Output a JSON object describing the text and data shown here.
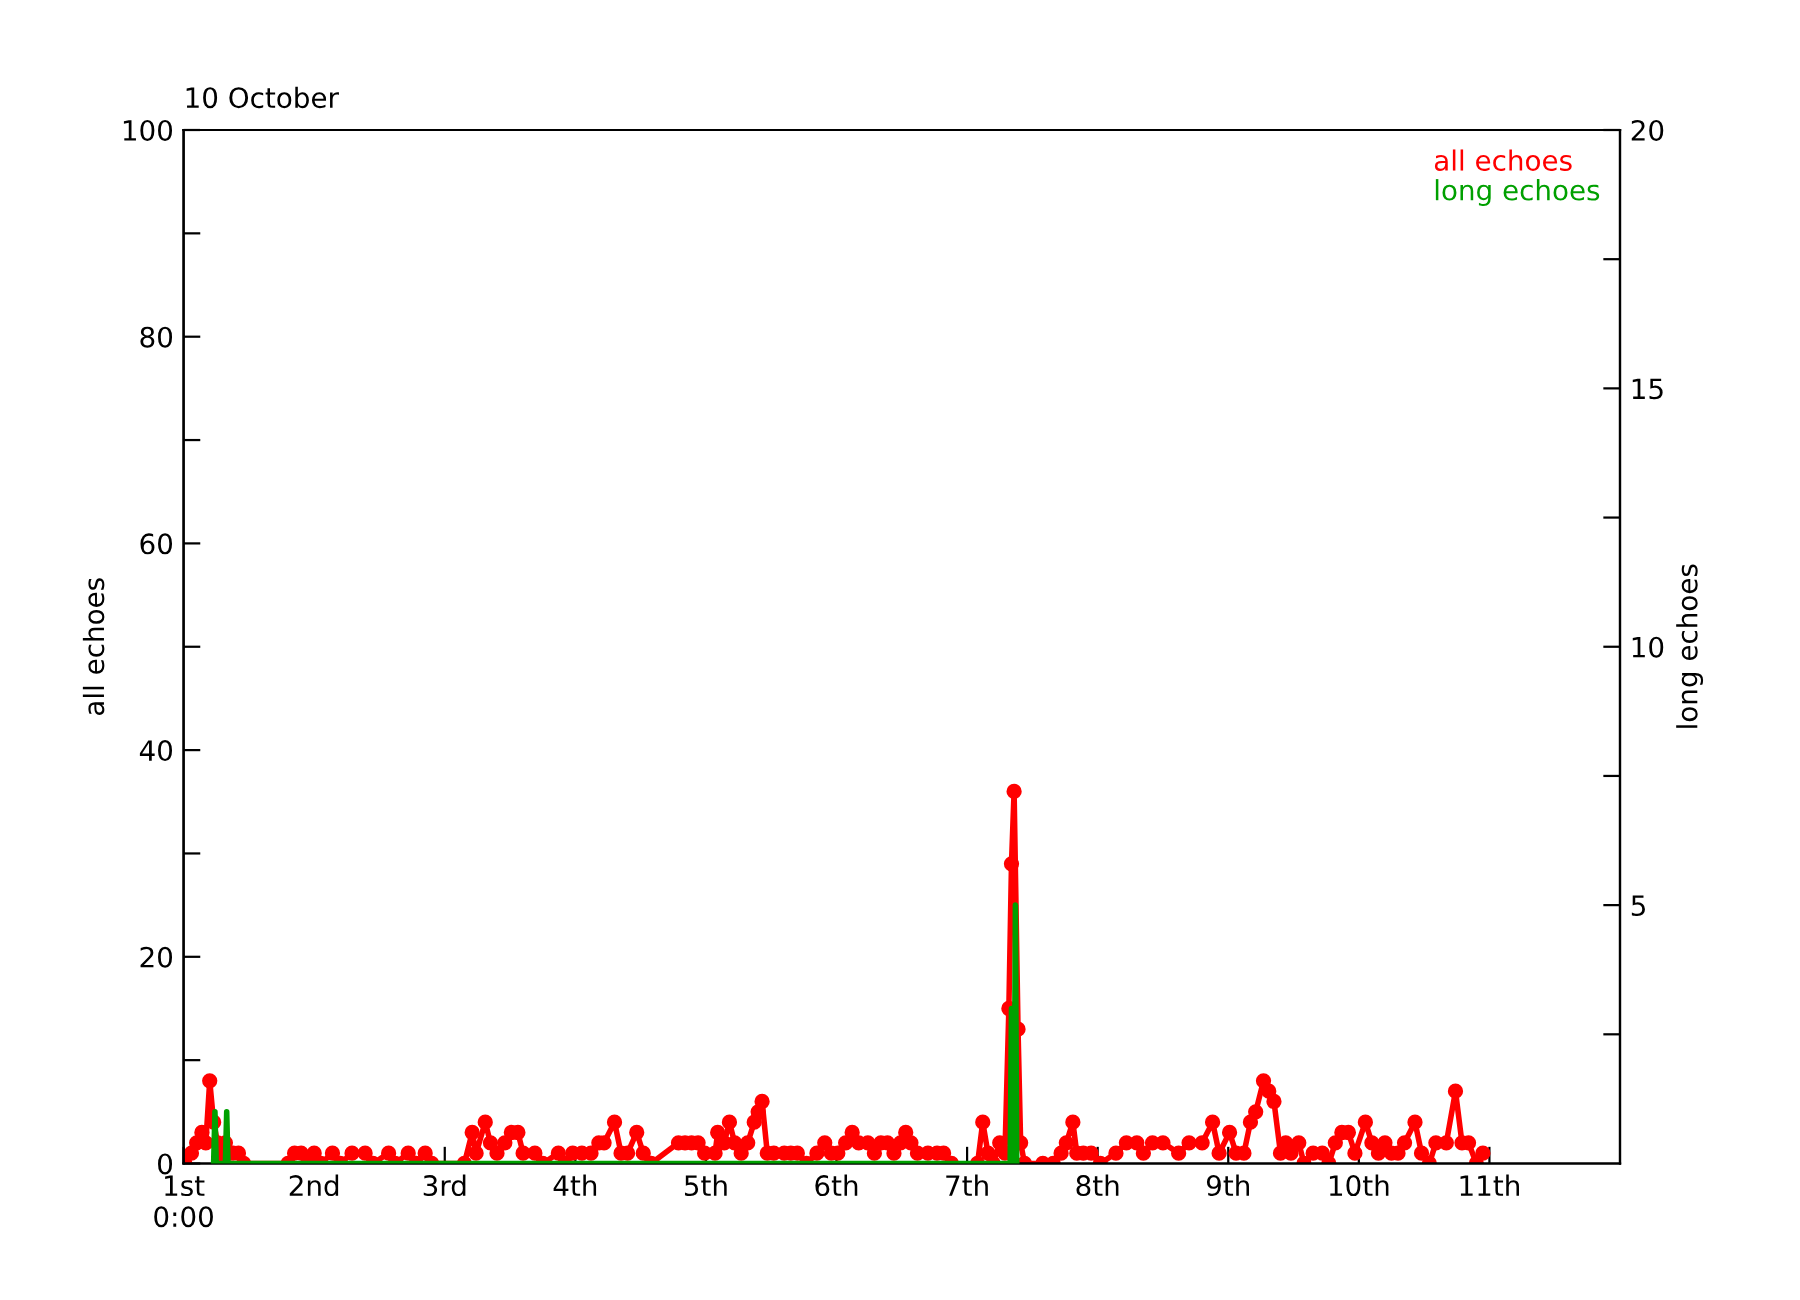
{
  "chart_data": {
    "type": "line",
    "title": "10 October",
    "ylabel": "all echoes",
    "y2label": "long echoes",
    "xlim": [
      1,
      12
    ],
    "xticks": [
      {
        "value": 1,
        "label": "1st\n0:00"
      },
      {
        "value": 2,
        "label": "2nd"
      },
      {
        "value": 3,
        "label": "3rd"
      },
      {
        "value": 4,
        "label": "4th"
      },
      {
        "value": 5,
        "label": "5th"
      },
      {
        "value": 6,
        "label": "6th"
      },
      {
        "value": 7,
        "label": "7th"
      },
      {
        "value": 8,
        "label": "8th"
      },
      {
        "value": 9,
        "label": "9th"
      },
      {
        "value": 10,
        "label": "10th"
      },
      {
        "value": 11,
        "label": "11th"
      }
    ],
    "ylim": [
      0,
      100
    ],
    "yticks": [
      0,
      {
        "value": 10,
        "label": null
      },
      20,
      {
        "value": 30,
        "label": null
      },
      40,
      {
        "value": 50,
        "label": null
      },
      60,
      {
        "value": 70,
        "label": null
      },
      80,
      {
        "value": 90,
        "label": null
      },
      100
    ],
    "y2lim": [
      0,
      20
    ],
    "y2ticks": [
      {
        "value": 2.5,
        "label": null
      },
      5,
      {
        "value": 7.5,
        "label": null
      },
      10,
      {
        "value": 12.5,
        "label": null
      },
      15,
      {
        "value": 17.5,
        "label": null
      },
      20
    ],
    "legend": "top right",
    "grid": false,
    "series": [
      {
        "name": "all echoes",
        "color": "#ff0000",
        "marker": "circle",
        "x": [
          1.01,
          1.06,
          1.1,
          1.14,
          1.17,
          1.2,
          1.23,
          1.26,
          1.29,
          1.32,
          1.35,
          1.38,
          1.42,
          1.46,
          1.8,
          1.85,
          1.9,
          1.95,
          2.0,
          2.05,
          2.14,
          2.2,
          2.29,
          2.39,
          2.45,
          2.57,
          2.62,
          2.72,
          2.78,
          2.85,
          2.9,
          3.15,
          3.21,
          3.24,
          3.31,
          3.35,
          3.4,
          3.46,
          3.51,
          3.56,
          3.6,
          3.69,
          3.75,
          3.87,
          3.92,
          3.98,
          4.05,
          4.12,
          4.18,
          4.22,
          4.3,
          4.35,
          4.4,
          4.47,
          4.52,
          4.58,
          4.79,
          4.84,
          4.89,
          4.94,
          4.99,
          5.07,
          5.09,
          5.14,
          5.18,
          5.22,
          5.27,
          5.32,
          5.37,
          5.4,
          5.43,
          5.47,
          5.52,
          5.6,
          5.65,
          5.7,
          5.77,
          5.85,
          5.91,
          5.96,
          6.01,
          6.07,
          6.12,
          6.17,
          6.24,
          6.29,
          6.34,
          6.39,
          6.44,
          6.49,
          6.53,
          6.57,
          6.62,
          6.7,
          6.77,
          6.82,
          6.88,
          6.95,
          7.08,
          7.12,
          7.16,
          7.2,
          7.25,
          7.29,
          7.32,
          7.34,
          7.36,
          7.39,
          7.41,
          7.44,
          7.58,
          7.62,
          7.66,
          7.72,
          7.76,
          7.81,
          7.84,
          7.89,
          7.95,
          8.02,
          8.14,
          8.22,
          8.3,
          8.35,
          8.42,
          8.5,
          8.62,
          8.7,
          8.8,
          8.88,
          8.93,
          9.01,
          9.06,
          9.12,
          9.17,
          9.21,
          9.27,
          9.31,
          9.35,
          9.4,
          9.44,
          9.48,
          9.54,
          9.58,
          9.65,
          9.72,
          9.77,
          9.82,
          9.87,
          9.92,
          9.97,
          10.05,
          10.1,
          10.15,
          10.2,
          10.25,
          10.3,
          10.35,
          10.43,
          10.48,
          10.54,
          10.59,
          10.67,
          10.74,
          10.79,
          10.84,
          10.9,
          10.95
        ],
        "values": [
          0,
          1,
          2,
          3,
          2,
          8,
          4,
          2,
          0,
          2,
          1,
          1,
          1,
          0,
          0,
          1,
          1,
          0,
          1,
          0,
          1,
          0,
          1,
          1,
          0,
          1,
          0,
          1,
          0,
          1,
          0,
          0,
          3,
          1,
          4,
          2,
          1,
          2,
          3,
          3,
          1,
          1,
          0,
          1,
          0,
          1,
          1,
          1,
          2,
          2,
          4,
          1,
          1,
          3,
          1,
          0,
          2,
          2,
          2,
          2,
          1,
          1,
          3,
          2,
          4,
          2,
          1,
          2,
          4,
          5,
          6,
          1,
          1,
          1,
          1,
          1,
          0,
          1,
          2,
          1,
          1,
          2,
          3,
          2,
          2,
          1,
          2,
          2,
          1,
          2,
          3,
          2,
          1,
          1,
          1,
          1,
          0,
          null,
          0,
          4,
          1,
          0,
          2,
          1,
          15,
          29,
          36,
          13,
          2,
          0,
          0,
          null,
          0,
          1,
          2,
          4,
          1,
          1,
          1,
          0,
          1,
          2,
          2,
          1,
          2,
          2,
          1,
          2,
          2,
          4,
          1,
          3,
          1,
          1,
          4,
          5,
          8,
          7,
          6,
          1,
          2,
          1,
          2,
          0,
          1,
          1,
          0,
          2,
          3,
          3,
          1,
          4,
          2,
          1,
          2,
          1,
          1,
          2,
          4,
          1,
          0,
          2,
          2,
          7,
          2,
          2,
          0,
          1
        ]
      },
      {
        "name": "long echoes",
        "color": "#00a000",
        "marker": "none",
        "axis": "y2",
        "x": [
          1.23,
          1.24,
          1.25,
          1.32,
          1.33,
          1.34,
          7.33,
          7.34,
          7.35,
          7.36,
          7.37,
          7.38
        ],
        "values": [
          0,
          1,
          0,
          0,
          1,
          0,
          0,
          3,
          0,
          0,
          5,
          0
        ]
      }
    ]
  }
}
